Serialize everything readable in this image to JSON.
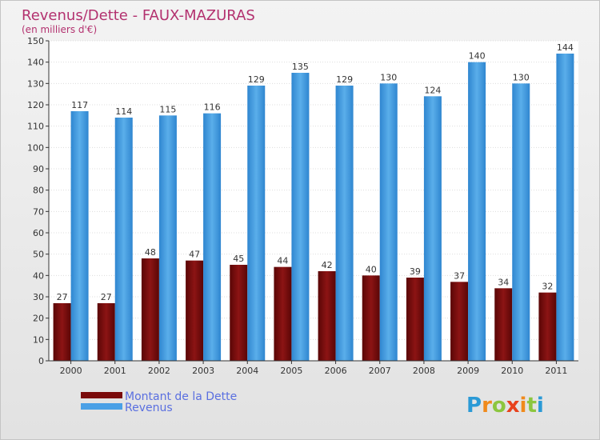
{
  "chart_data": {
    "type": "bar",
    "title": "Revenus/Dette - FAUX-MAZURAS",
    "subtitle": "(en milliers d'€)",
    "categories": [
      "2000",
      "2001",
      "2002",
      "2003",
      "2004",
      "2005",
      "2006",
      "2007",
      "2008",
      "2009",
      "2010",
      "2011"
    ],
    "series": [
      {
        "name": "Montant de la Dette",
        "color": "#7a0b0b",
        "values": [
          27,
          27,
          48,
          47,
          45,
          44,
          42,
          40,
          39,
          37,
          34,
          32
        ]
      },
      {
        "name": "Revenus",
        "color": "#4aa0e6",
        "values": [
          117,
          114,
          115,
          116,
          129,
          135,
          129,
          130,
          124,
          140,
          130,
          144
        ]
      }
    ],
    "ylim": [
      0,
      150
    ],
    "ytick_step": 10,
    "grid": true,
    "legend": "bottom-left"
  },
  "brand": {
    "letters": [
      "P",
      "r",
      "o",
      "x",
      "i",
      "t",
      "i"
    ],
    "colors": [
      "#2b9ad6",
      "#f08a1c",
      "#8cc63f",
      "#e8421c",
      "#f08a1c",
      "#8cc63f",
      "#2b9ad6"
    ]
  }
}
